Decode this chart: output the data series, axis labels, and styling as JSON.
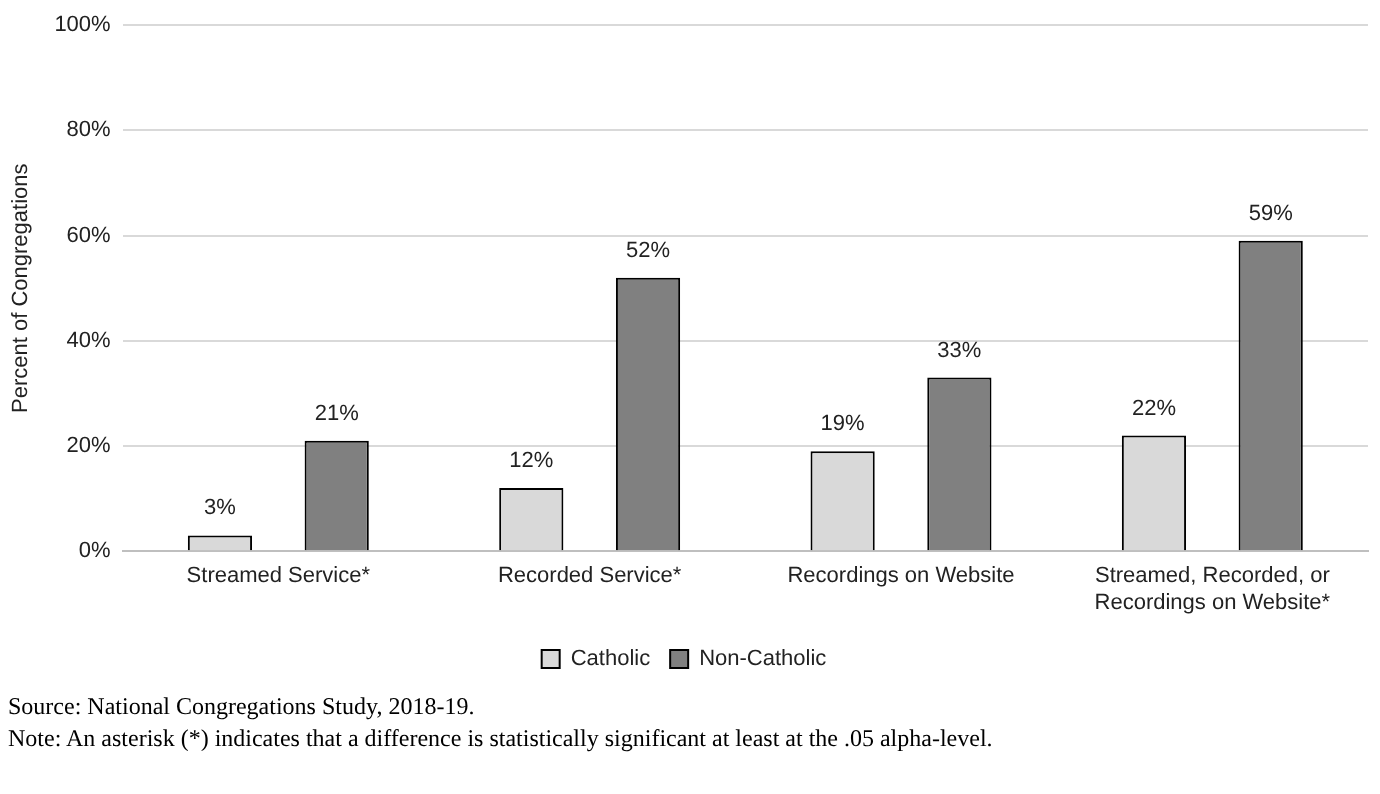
{
  "chart_data": {
    "type": "bar",
    "ylabel": "Percent of Congregations",
    "categories": [
      "Streamed Service*",
      "Recorded Service*",
      "Recordings on Website",
      "Streamed, Recorded, or Recordings on Website*"
    ],
    "series": [
      {
        "name": "Catholic",
        "color": "#d9d9d9",
        "values": [
          3,
          12,
          19,
          22
        ],
        "value_labels": [
          "3%",
          "12%",
          "19%",
          "22%"
        ]
      },
      {
        "name": "Non-Catholic",
        "color": "#808080",
        "values": [
          21,
          52,
          33,
          59
        ],
        "value_labels": [
          "21%",
          "52%",
          "33%",
          "59%"
        ]
      }
    ],
    "ylim": [
      0,
      100
    ],
    "yticks": [
      {
        "value": 0,
        "label": "0%"
      },
      {
        "value": 20,
        "label": "20%"
      },
      {
        "value": 40,
        "label": "40%"
      },
      {
        "value": 60,
        "label": "60%"
      },
      {
        "value": 80,
        "label": "80%"
      },
      {
        "value": 100,
        "label": "100%"
      }
    ],
    "grid": "y",
    "legend": "bottom",
    "annotations": [
      "Source:  National Congregations Study, 2018-19.",
      "Note: An asterisk (*) indicates that a difference is statistically significant at least at the .05 alpha-level."
    ]
  }
}
